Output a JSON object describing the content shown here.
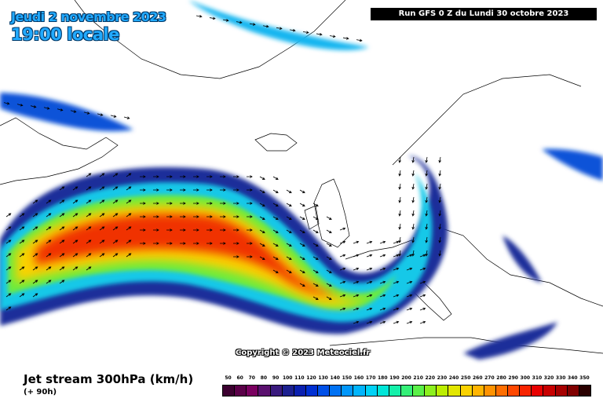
{
  "header": {
    "date": "Jeudi 2 novembre 2023",
    "time": "19:00 locale",
    "run": "Run GFS 0 Z du Lundi 30 octobre 2023"
  },
  "map": {
    "copyright": "Copyright © 2023 Meteociel.fr"
  },
  "legend": {
    "title": "Jet stream 300hPa (km/h)",
    "subtitle": "(+ 90h)",
    "levels": [
      {
        "label": "50",
        "color": "#3c0030"
      },
      {
        "label": "60",
        "color": "#5a0048"
      },
      {
        "label": "70",
        "color": "#7a0060"
      },
      {
        "label": "80",
        "color": "#5a106e"
      },
      {
        "label": "90",
        "color": "#3a1a7e"
      },
      {
        "label": "100",
        "color": "#1c2090"
      },
      {
        "label": "110",
        "color": "#0a20b0"
      },
      {
        "label": "120",
        "color": "#0030d2"
      },
      {
        "label": "130",
        "color": "#0050e8"
      },
      {
        "label": "140",
        "color": "#0072f4"
      },
      {
        "label": "150",
        "color": "#0096fa"
      },
      {
        "label": "160",
        "color": "#00b4fc"
      },
      {
        "label": "170",
        "color": "#00d2f6"
      },
      {
        "label": "180",
        "color": "#00e6d8"
      },
      {
        "label": "190",
        "color": "#14f0aa"
      },
      {
        "label": "200",
        "color": "#34f078"
      },
      {
        "label": "210",
        "color": "#5af048"
      },
      {
        "label": "220",
        "color": "#8cf01e"
      },
      {
        "label": "230",
        "color": "#bcee00"
      },
      {
        "label": "240",
        "color": "#e2e600"
      },
      {
        "label": "250",
        "color": "#fad200"
      },
      {
        "label": "260",
        "color": "#ffb400"
      },
      {
        "label": "270",
        "color": "#ff9200"
      },
      {
        "label": "280",
        "color": "#ff6e00"
      },
      {
        "label": "290",
        "color": "#ff4800"
      },
      {
        "label": "300",
        "color": "#f82400"
      },
      {
        "label": "310",
        "color": "#e80000"
      },
      {
        "label": "320",
        "color": "#c80000"
      },
      {
        "label": "330",
        "color": "#a60000"
      },
      {
        "label": "340",
        "color": "#800000"
      },
      {
        "label": "350",
        "color": "#2a0000"
      }
    ]
  }
}
